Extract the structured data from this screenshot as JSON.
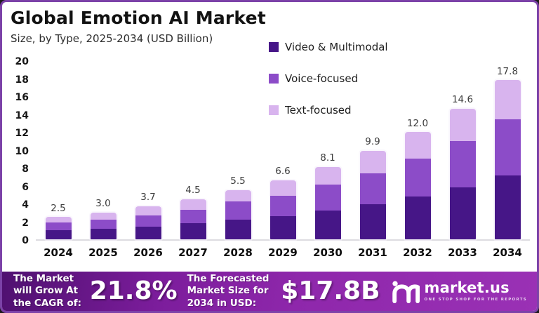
{
  "header": {
    "title": "Global Emotion AI Market",
    "subtitle": "Size, by Type, 2025-2034 (USD Billion)"
  },
  "chart_data": {
    "type": "bar",
    "stacked": true,
    "title": "Global Emotion AI Market",
    "subtitle": "Size, by Type, 2025-2034 (USD Billion)",
    "categories": [
      "2024",
      "2025",
      "2026",
      "2027",
      "2028",
      "2029",
      "2030",
      "2031",
      "2032",
      "2033",
      "2034"
    ],
    "series": [
      {
        "name": "Video & Multimodal",
        "color": "#461687",
        "values": [
          1.0,
          1.2,
          1.4,
          1.8,
          2.2,
          2.6,
          3.2,
          3.9,
          4.8,
          5.8,
          7.1
        ]
      },
      {
        "name": "Voice-focused",
        "color": "#8c4cc8",
        "values": [
          0.9,
          1.0,
          1.3,
          1.5,
          2.0,
          2.3,
          2.9,
          3.5,
          4.2,
          5.2,
          6.3
        ]
      },
      {
        "name": "Text-focused",
        "color": "#d8b4ee",
        "values": [
          0.6,
          0.8,
          1.0,
          1.2,
          1.3,
          1.7,
          2.0,
          2.5,
          3.0,
          3.6,
          4.4
        ]
      }
    ],
    "total_labels": [
      "2.5",
      "3.0",
      "3.7",
      "4.5",
      "5.5",
      "6.6",
      "8.1",
      "9.9",
      "12.0",
      "14.6",
      "17.8"
    ],
    "ylim": [
      0,
      20
    ],
    "yticks": [
      0,
      2,
      4,
      6,
      8,
      10,
      12,
      14,
      16,
      18,
      20
    ],
    "grid": false,
    "legend_position": "top-center",
    "xlabel": "",
    "ylabel": ""
  },
  "banner": {
    "left_label": "The Market will Grow At the CAGR of:",
    "cagr_value": "21.8%",
    "right_label": "The Forecasted Market Size for 2034 in USD:",
    "market_size_value": "$17.8B",
    "logo_text": "market.us",
    "logo_tagline": "ONE STOP SHOP FOR THE REPORTS"
  },
  "colors": {
    "border": "#7c42a8",
    "video_multimodal": "#461687",
    "voice_focused": "#8c4cc8",
    "text_focused": "#d8b4ee",
    "banner_gradient_start": "#4f1070",
    "banner_gradient_end": "#9a31b5"
  }
}
